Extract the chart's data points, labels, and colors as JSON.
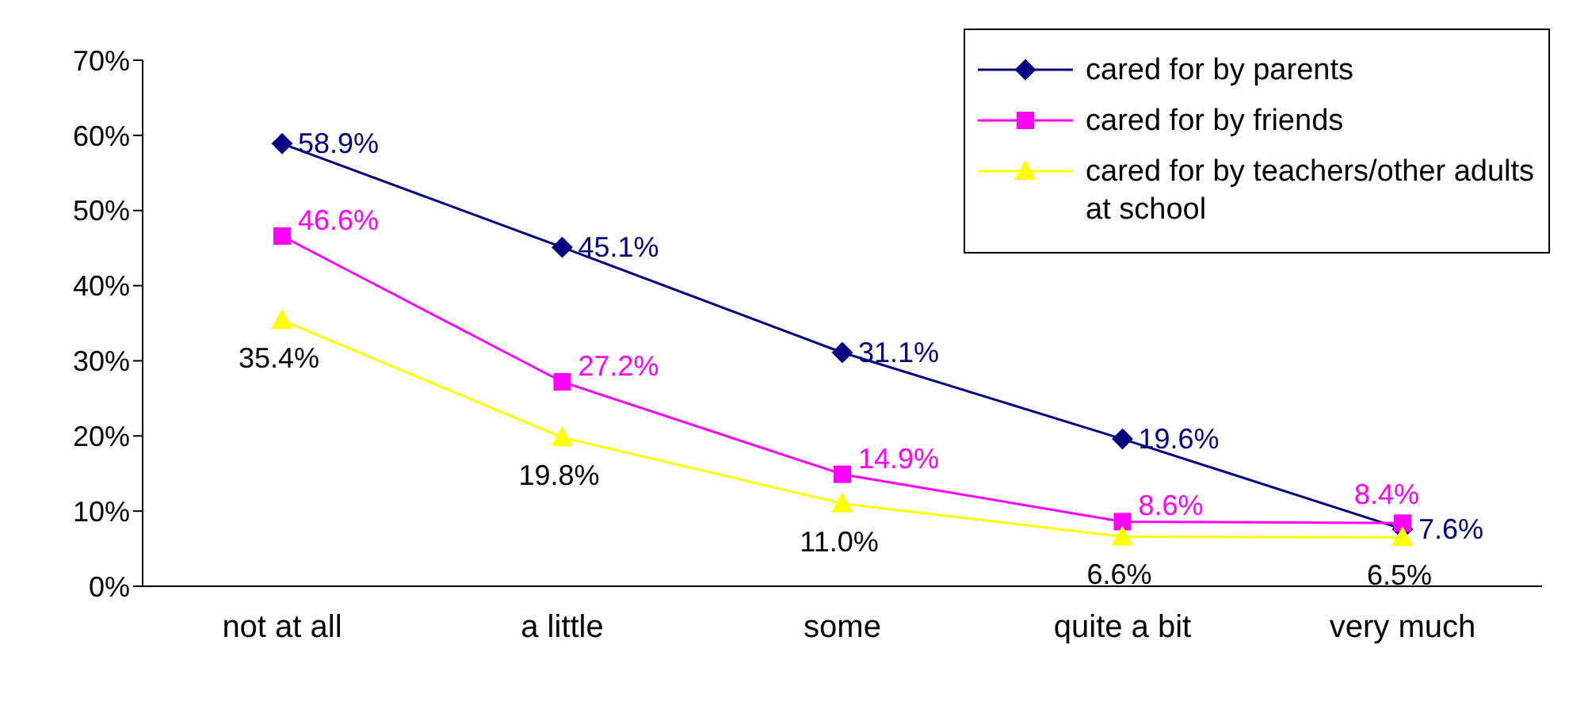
{
  "chart_data": {
    "type": "line",
    "categories": [
      "not at all",
      "a little",
      "some",
      "quite a bit",
      "very much"
    ],
    "series": [
      {
        "name": "cared for by parents",
        "color": "#000080",
        "marker": "diamond",
        "values": [
          58.9,
          45.1,
          31.1,
          19.6,
          7.6
        ],
        "value_labels": [
          "58.9%",
          "45.1%",
          "31.1%",
          "19.6%",
          "7.6%"
        ]
      },
      {
        "name": "cared for by friends",
        "color": "#ff00ff",
        "marker": "square",
        "values": [
          46.6,
          27.2,
          14.9,
          8.6,
          8.4
        ],
        "value_labels": [
          "46.6%",
          "27.2%",
          "14.9%",
          "8.6%",
          "8.4%"
        ]
      },
      {
        "name": "cared for by teachers/other adults at school",
        "color": "#ffff00",
        "marker": "triangle",
        "values": [
          35.4,
          19.8,
          11.0,
          6.6,
          6.5
        ],
        "value_labels": [
          "35.4%",
          "19.8%",
          "11.0%",
          "6.6%",
          "6.5%"
        ]
      }
    ],
    "ylim": [
      0,
      70
    ],
    "yticks": [
      {
        "value": 0,
        "label": "0%"
      },
      {
        "value": 10,
        "label": "10%"
      },
      {
        "value": 20,
        "label": "20%"
      },
      {
        "value": 30,
        "label": "30%"
      },
      {
        "value": 40,
        "label": "40%"
      },
      {
        "value": 50,
        "label": "50%"
      },
      {
        "value": 60,
        "label": "60%"
      },
      {
        "value": 70,
        "label": "70%"
      }
    ],
    "grid": false,
    "legend": "top right",
    "line_style": "solid"
  }
}
